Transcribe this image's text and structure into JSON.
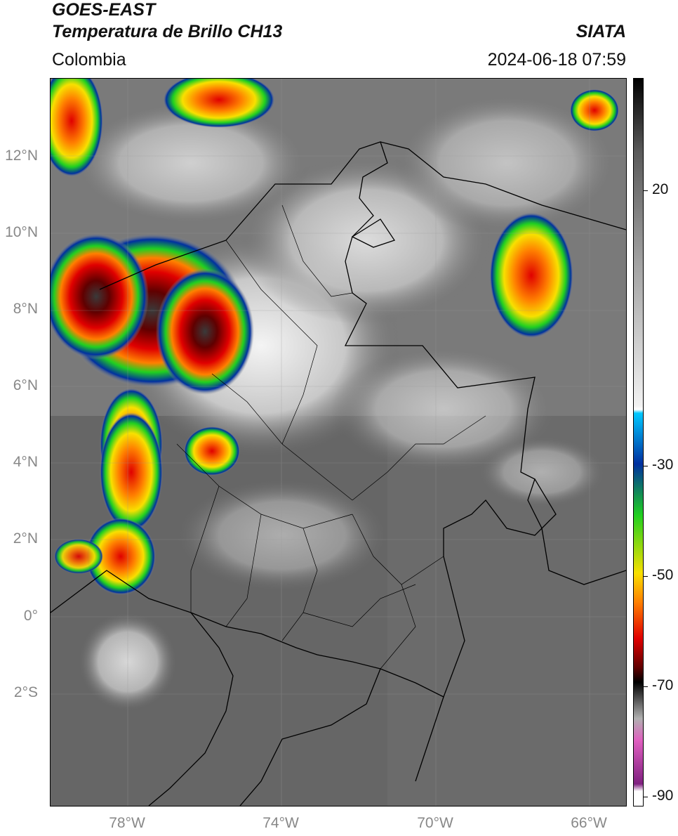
{
  "header": {
    "satellite": "GOES-EAST",
    "product": "Temperatura de Brillo CH13",
    "agency": "SIATA",
    "region": "Colombia",
    "datetime": "2024-06-18 07:59"
  },
  "map": {
    "lat_labels": [
      "12°N",
      "10°N",
      "8°N",
      "6°N",
      "4°N",
      "2°N",
      "0°",
      "2°S"
    ],
    "lon_labels": [
      "78°W",
      "74°W",
      "70°W",
      "66°W"
    ]
  },
  "colorbar": {
    "ticks": [
      "20",
      "-30",
      "-50",
      "-70",
      "-90"
    ],
    "colors": {
      "warm": "#5a5a5a",
      "cold_white": "#f2f2f2",
      "cyan": "#00c8ff",
      "blue": "#0030a0",
      "green": "#20d020",
      "yellow": "#f8e000",
      "orange": "#ff8000",
      "red": "#e00000",
      "darkred": "#600000",
      "black": "#000000",
      "gray": "#b0b0b0",
      "magenta": "#e060c0",
      "purple": "#802080"
    }
  }
}
